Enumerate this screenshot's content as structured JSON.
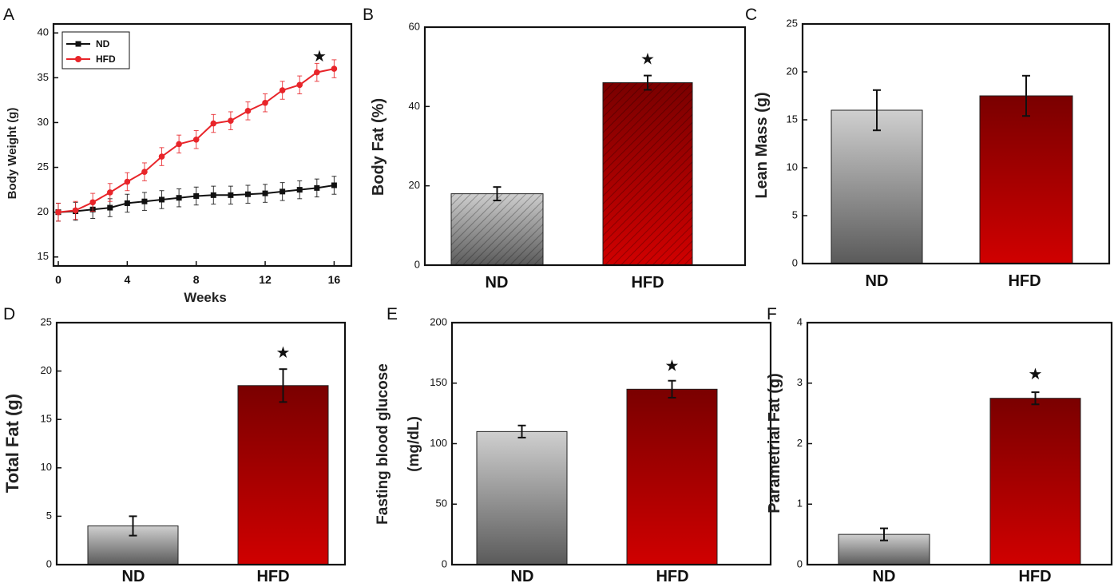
{
  "colors": {
    "nd_line": "#111111",
    "hfd_line": "#e8252a",
    "nd_bar_top": "#cfcfcf",
    "nd_bar_bottom": "#5a5a5a",
    "hfd_bar_top": "#7a0000",
    "hfd_bar_bottom": "#d00000"
  },
  "chart_data": [
    {
      "panel": "A",
      "type": "line",
      "xlabel": "Weeks",
      "ylabel": "Body Weight (g)",
      "xlim": [
        0,
        17
      ],
      "ylim": [
        14,
        41
      ],
      "xticks": [
        0,
        4,
        8,
        12,
        16
      ],
      "yticks": [
        15,
        20,
        25,
        30,
        35,
        40
      ],
      "legend": "top-left",
      "significance": "★",
      "series": [
        {
          "name": "ND",
          "x": [
            0,
            1,
            2,
            3,
            4,
            5,
            6,
            7,
            8,
            9,
            10,
            11,
            12,
            13,
            14,
            15,
            16
          ],
          "values": [
            20,
            20.1,
            20.3,
            20.5,
            21,
            21.2,
            21.4,
            21.6,
            21.8,
            21.9,
            21.9,
            22,
            22.1,
            22.3,
            22.5,
            22.7,
            23
          ],
          "errors": [
            1,
            1,
            1,
            1,
            1,
            1,
            1,
            1,
            1,
            1,
            1,
            1,
            1,
            1,
            1,
            1,
            1
          ]
        },
        {
          "name": "HFD",
          "x": [
            0,
            1,
            2,
            3,
            4,
            5,
            6,
            7,
            8,
            9,
            10,
            11,
            12,
            13,
            14,
            15,
            16
          ],
          "values": [
            20,
            20.2,
            21.1,
            22.2,
            23.4,
            24.5,
            26.2,
            27.6,
            28.1,
            29.9,
            30.2,
            31.3,
            32.2,
            33.6,
            34.2,
            35.6,
            36
          ],
          "errors": [
            1,
            1,
            1,
            1,
            1,
            1,
            1,
            1,
            1,
            1,
            1,
            1,
            1,
            1,
            1,
            1,
            1
          ]
        }
      ]
    },
    {
      "panel": "B",
      "type": "bar",
      "ylabel": "Body Fat (%)",
      "ylim": [
        0,
        60
      ],
      "yticks": [
        0,
        20,
        40,
        60
      ],
      "categories": [
        "ND",
        "HFD"
      ],
      "values": [
        18,
        46
      ],
      "errors": [
        1.7,
        1.8
      ],
      "significance": [
        "",
        "★"
      ],
      "hatched": true
    },
    {
      "panel": "C",
      "type": "bar",
      "ylabel": "Lean Mass (g)",
      "ylim": [
        0,
        25
      ],
      "yticks": [
        0,
        5,
        10,
        15,
        20,
        25
      ],
      "categories": [
        "ND",
        "HFD"
      ],
      "values": [
        16,
        17.5
      ],
      "errors": [
        2.1,
        2.1
      ],
      "significance": [
        "",
        ""
      ],
      "hatched": false
    },
    {
      "panel": "D",
      "type": "bar",
      "ylabel": "Total Fat (g)",
      "ylim": [
        0,
        25
      ],
      "yticks": [
        0,
        5,
        10,
        15,
        20,
        25
      ],
      "categories": [
        "ND",
        "HFD"
      ],
      "values": [
        4,
        18.5
      ],
      "errors": [
        1,
        1.7
      ],
      "significance": [
        "",
        "★"
      ],
      "hatched": false
    },
    {
      "panel": "E",
      "type": "bar",
      "ylabel": "Fasting blood glucose",
      "ylabel2": "(mg/dL)",
      "ylim": [
        0,
        200
      ],
      "yticks": [
        0,
        50,
        100,
        150,
        200
      ],
      "categories": [
        "ND",
        "HFD"
      ],
      "values": [
        110,
        145
      ],
      "errors": [
        5,
        7
      ],
      "significance": [
        "",
        "★"
      ],
      "hatched": false
    },
    {
      "panel": "F",
      "type": "bar",
      "ylabel": "Parametrial Fat (g)",
      "ylim": [
        0,
        4
      ],
      "yticks": [
        0,
        1,
        2,
        3,
        4
      ],
      "categories": [
        "ND",
        "HFD"
      ],
      "values": [
        0.5,
        2.75
      ],
      "errors": [
        0.1,
        0.1
      ],
      "significance": [
        "",
        "★"
      ],
      "hatched": false
    }
  ]
}
